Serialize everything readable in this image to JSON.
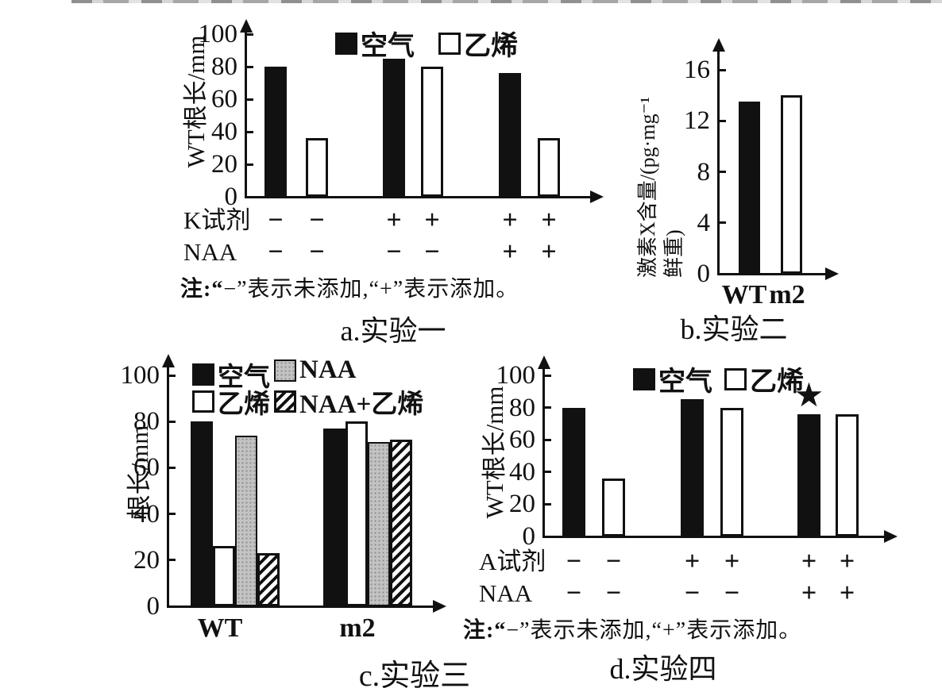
{
  "page": {
    "background": "#ffffff",
    "axis_color": "#111111"
  },
  "chart_data": [
    {
      "id": "a",
      "type": "bar",
      "caption": "a.实验一",
      "ylabel": "WT根长/mm",
      "xlabel": "",
      "ylim": [
        0,
        100
      ],
      "yticks": [
        0,
        20,
        40,
        60,
        80,
        100
      ],
      "grid": false,
      "legend_position": "top",
      "legend": [
        {
          "label": "空气",
          "fill": "black"
        },
        {
          "label": "乙烯",
          "fill": "white"
        }
      ],
      "bars": [
        {
          "series": "空气",
          "condition": "K试剂− NAA−",
          "value": 80,
          "fill": "black"
        },
        {
          "series": "乙烯",
          "condition": "K试剂− NAA−",
          "value": 36,
          "fill": "white"
        },
        {
          "series": "空气",
          "condition": "K试剂+ NAA−",
          "value": 85,
          "fill": "black"
        },
        {
          "series": "乙烯",
          "condition": "K试剂+ NAA−",
          "value": 80,
          "fill": "white"
        },
        {
          "series": "空气",
          "condition": "K试剂+ NAA+",
          "value": 76,
          "fill": "black"
        },
        {
          "series": "乙烯",
          "condition": "K试剂+ NAA+",
          "value": 36,
          "fill": "white"
        }
      ],
      "sign_rows": [
        {
          "label": "K试剂",
          "signs": [
            "−",
            "−",
            "+",
            "+",
            "+",
            "+"
          ]
        },
        {
          "label": "NAA",
          "signs": [
            "−",
            "−",
            "−",
            "−",
            "+",
            "+"
          ]
        }
      ],
      "note": "注:“−”表示未添加,“+”表示添加。"
    },
    {
      "id": "b",
      "type": "bar",
      "caption": "b.实验二",
      "ylabel": "激素X含量/(pg·mg⁻¹\n鲜重)",
      "xlabel": "",
      "ylim": [
        0,
        16
      ],
      "yticks": [
        0,
        4,
        8,
        12,
        16
      ],
      "grid": false,
      "xlabels": [
        "WT",
        "m2"
      ],
      "bars": [
        {
          "series": "WT",
          "value": 13.5,
          "fill": "black"
        },
        {
          "series": "m2",
          "value": 14,
          "fill": "white"
        }
      ]
    },
    {
      "id": "c",
      "type": "bar",
      "caption": "c.实验三",
      "ylabel": "根长/mm",
      "xlabel": "",
      "ylim": [
        0,
        100
      ],
      "yticks": [
        0,
        20,
        40,
        60,
        80,
        100
      ],
      "grid": false,
      "legend_position": "top",
      "legend": [
        {
          "label": "空气",
          "fill": "black"
        },
        {
          "label": "NAA",
          "fill": "gray"
        },
        {
          "label": "乙烯",
          "fill": "white"
        },
        {
          "label": "NAA+乙烯",
          "fill": "hatch"
        }
      ],
      "categories": [
        "WT",
        "m2"
      ],
      "xlabels": [
        "WT",
        "m2"
      ],
      "bars": [
        {
          "group": "WT",
          "series": "空气",
          "value": 80,
          "fill": "black"
        },
        {
          "group": "WT",
          "series": "乙烯",
          "value": 26,
          "fill": "white"
        },
        {
          "group": "WT",
          "series": "NAA",
          "value": 74,
          "fill": "gray"
        },
        {
          "group": "WT",
          "series": "NAA+乙烯",
          "value": 23,
          "fill": "hatch"
        },
        {
          "group": "m2",
          "series": "空气",
          "value": 77,
          "fill": "black"
        },
        {
          "group": "m2",
          "series": "乙烯",
          "value": 80,
          "fill": "white"
        },
        {
          "group": "m2",
          "series": "NAA",
          "value": 71,
          "fill": "gray"
        },
        {
          "group": "m2",
          "series": "NAA+乙烯",
          "value": 72,
          "fill": "hatch"
        }
      ]
    },
    {
      "id": "d",
      "type": "bar",
      "caption": "d.实验四",
      "ylabel": "WT根长/mm",
      "xlabel": "",
      "ylim": [
        0,
        100
      ],
      "yticks": [
        0,
        20,
        40,
        60,
        80,
        100
      ],
      "grid": false,
      "legend_position": "top",
      "legend": [
        {
          "label": "空气",
          "fill": "black"
        },
        {
          "label": "乙烯",
          "fill": "white"
        }
      ],
      "bars": [
        {
          "series": "空气",
          "condition": "A试剂− NAA−",
          "value": 80,
          "fill": "black"
        },
        {
          "series": "乙烯",
          "condition": "A试剂− NAA−",
          "value": 36,
          "fill": "white"
        },
        {
          "series": "空气",
          "condition": "A试剂+ NAA−",
          "value": 85,
          "fill": "black"
        },
        {
          "series": "乙烯",
          "condition": "A试剂+ NAA−",
          "value": 80,
          "fill": "white"
        },
        {
          "series": "空气",
          "condition": "A试剂+ NAA+",
          "value": 76,
          "fill": "black",
          "marker": "★"
        },
        {
          "series": "乙烯",
          "condition": "A试剂+ NAA+",
          "value": 76,
          "fill": "white"
        }
      ],
      "sign_rows": [
        {
          "label": "A试剂",
          "signs": [
            "−",
            "−",
            "+",
            "+",
            "+",
            "+"
          ]
        },
        {
          "label": "NAA",
          "signs": [
            "−",
            "−",
            "−",
            "−",
            "+",
            "+"
          ]
        }
      ],
      "note": "注:“−”表示未添加,“+”表示添加。"
    }
  ]
}
